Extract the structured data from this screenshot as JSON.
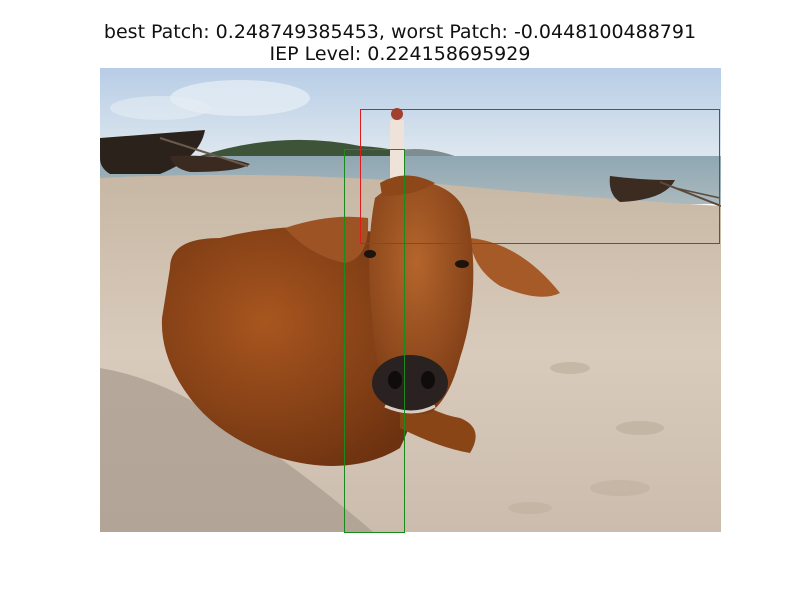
{
  "figure": {
    "title_line1": "best Patch: 0.248749385453, worst Patch: -0.0448100488791",
    "title_line2": "IEP Level: 0.224158695929"
  },
  "colors": {
    "best_patch": "#1a8a1a",
    "worst_patch": "#e01b1b"
  },
  "scene": {
    "subject": "cow-on-beach"
  }
}
